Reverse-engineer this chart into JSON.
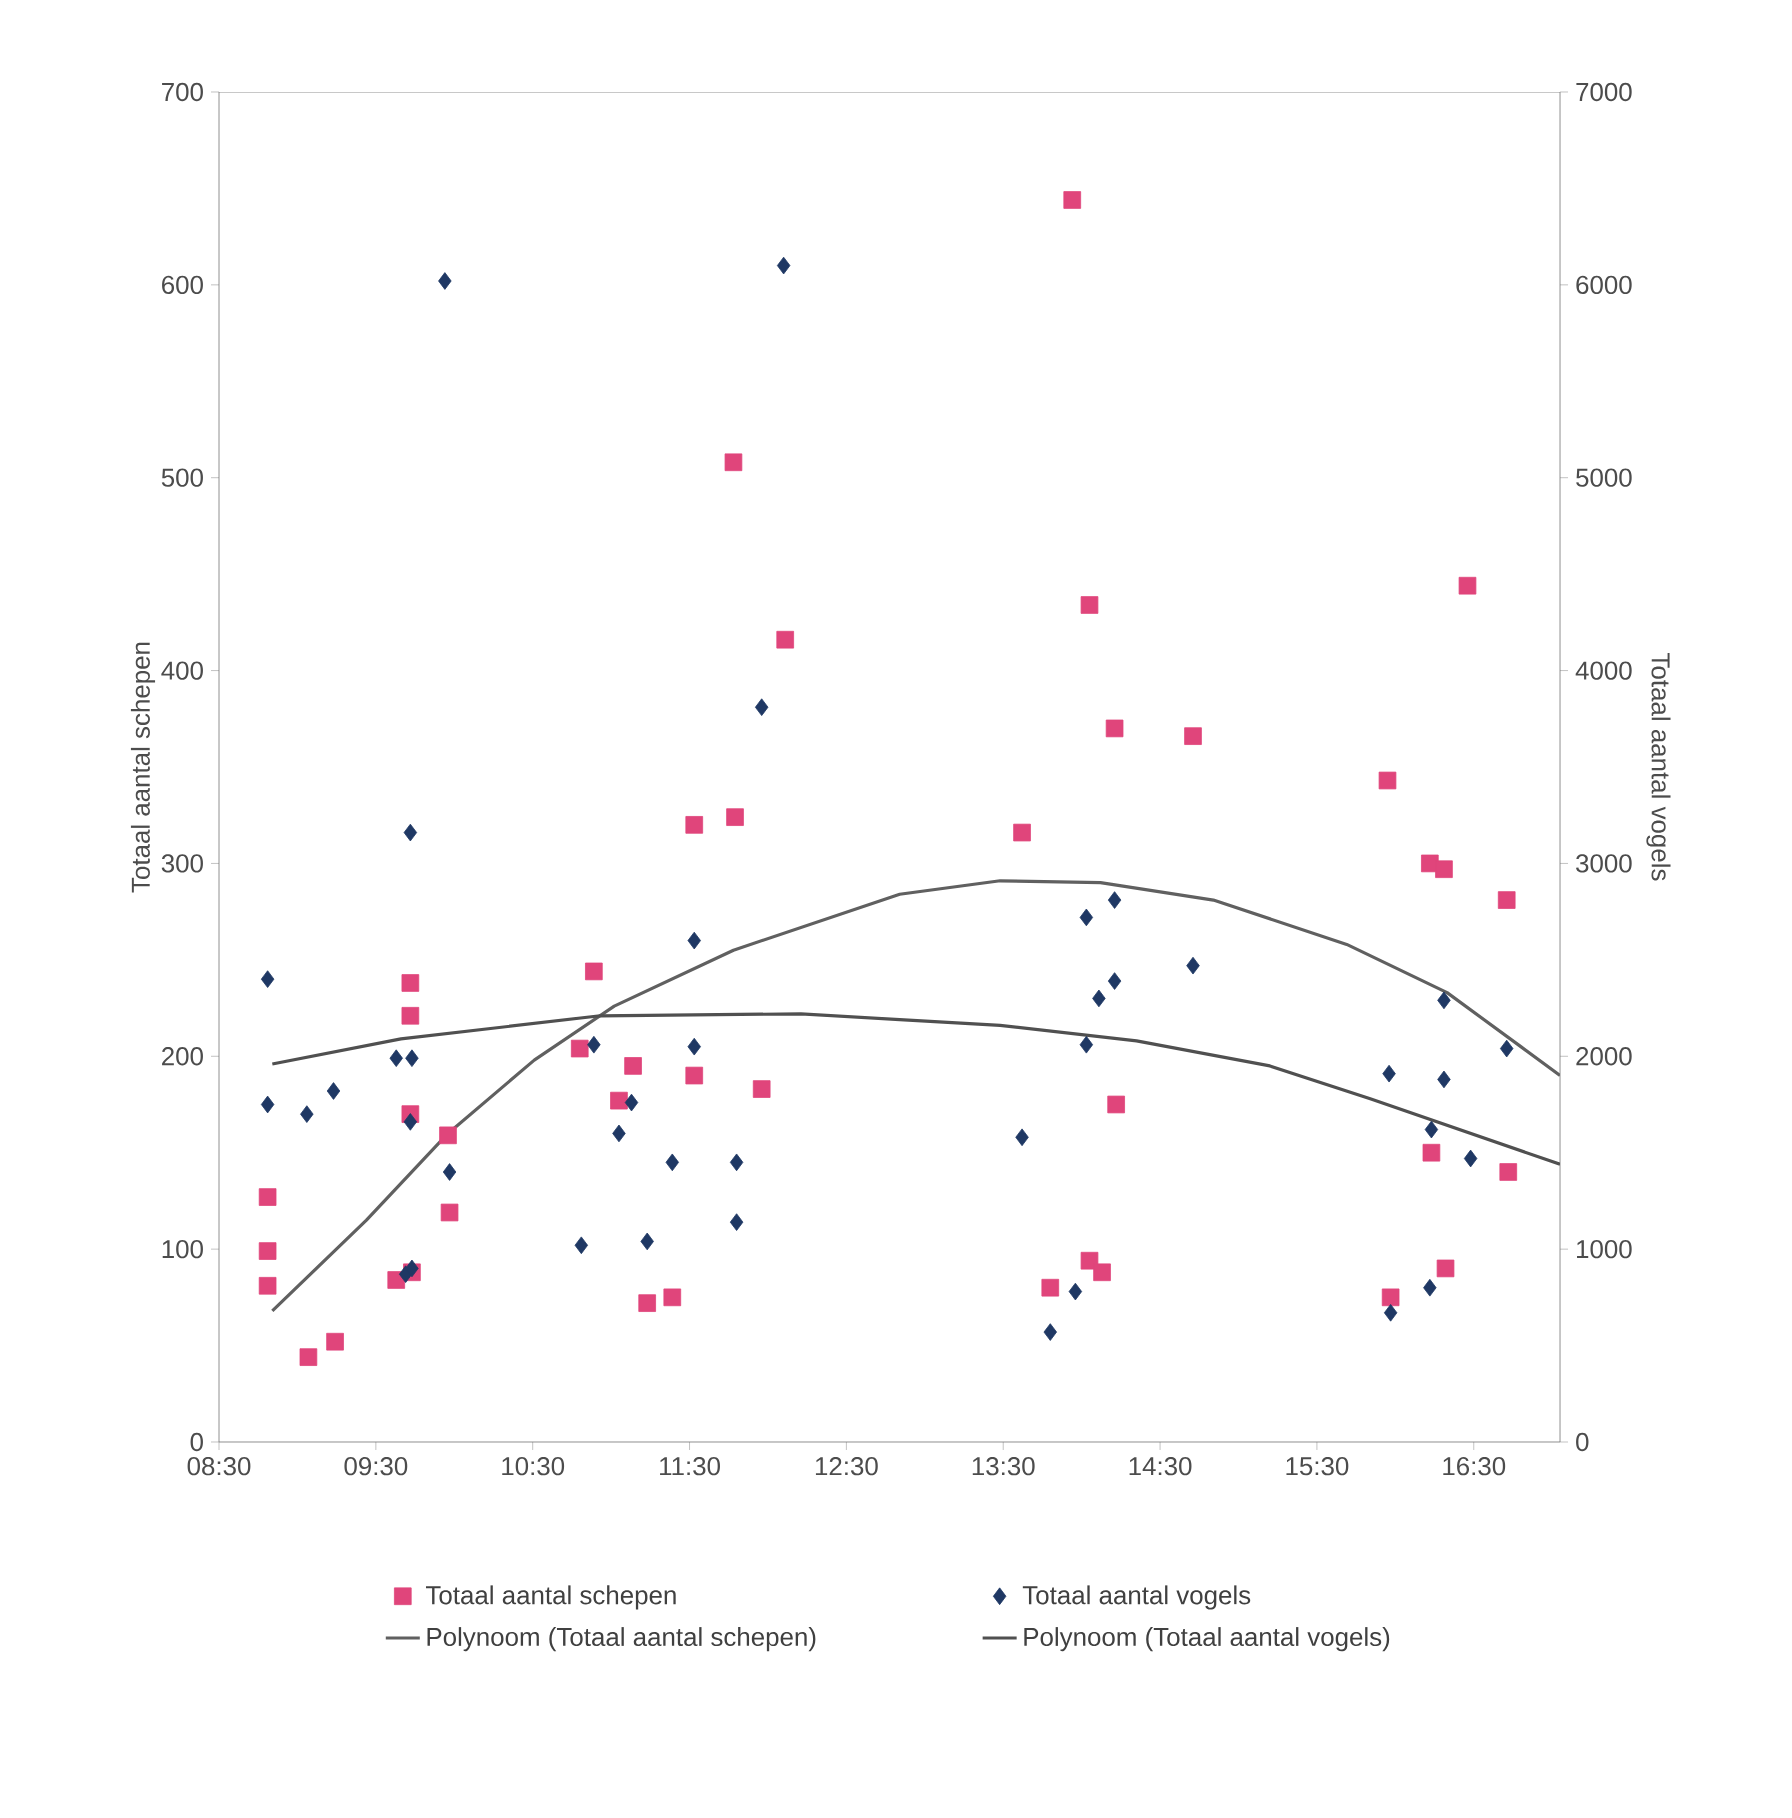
{
  "chart_data": {
    "type": "scatter",
    "ylabel": "Totaal aantal schepen",
    "y2label": "Totaal aantal vogels",
    "xlim": [
      8.5,
      17.05
    ],
    "xticks": [
      {
        "value": 8.5,
        "label": "08:30"
      },
      {
        "value": 9.5,
        "label": "09:30"
      },
      {
        "value": 10.5,
        "label": "10:30"
      },
      {
        "value": 11.5,
        "label": "11:30"
      },
      {
        "value": 12.5,
        "label": "12:30"
      },
      {
        "value": 13.5,
        "label": "13:30"
      },
      {
        "value": 14.5,
        "label": "14:30"
      },
      {
        "value": 15.5,
        "label": "15:30"
      },
      {
        "value": 16.5,
        "label": "16:30"
      }
    ],
    "ylim": [
      0,
      700
    ],
    "yticks": [
      0,
      100,
      200,
      300,
      400,
      500,
      600,
      700
    ],
    "y2lim": [
      0,
      7000
    ],
    "y2ticks": [
      0,
      1000,
      2000,
      3000,
      4000,
      5000,
      6000,
      7000
    ],
    "grid": false,
    "legend": "bottom",
    "series": [
      {
        "name": "Totaal aantal schepen",
        "marker": "square",
        "color": "#e0457b",
        "x": [
          8.81,
          8.81,
          8.81,
          9.07,
          9.24,
          9.63,
          9.73,
          9.72,
          9.72,
          9.72,
          9.96,
          9.97,
          10.8,
          10.89,
          11.05,
          11.14,
          11.23,
          11.39,
          11.53,
          11.53,
          11.79,
          11.78,
          11.96,
          12.11,
          13.62,
          13.8,
          13.94,
          14.05,
          14.05,
          14.13,
          14.21,
          14.22,
          14.71,
          15.95,
          15.97,
          16.22,
          16.23,
          16.31,
          16.32,
          16.46,
          16.71,
          16.72
        ],
        "values": [
          127,
          99,
          81,
          44,
          52,
          84,
          88,
          238,
          221,
          170,
          159,
          119,
          204,
          244,
          177,
          195,
          72,
          75,
          190,
          320,
          324,
          508,
          183,
          416,
          316,
          80,
          644,
          434,
          94,
          88,
          370,
          175,
          366,
          343,
          75,
          300,
          150,
          297,
          90,
          444,
          281,
          140
        ]
      },
      {
        "name": "Totaal aantal vogels",
        "marker": "diamond",
        "axis": "y2",
        "color": "#1f3864",
        "x": [
          8.81,
          8.81,
          9.06,
          9.23,
          9.69,
          9.73,
          9.72,
          9.63,
          9.73,
          9.72,
          9.94,
          9.97,
          10.81,
          10.89,
          11.05,
          11.13,
          11.23,
          11.39,
          11.53,
          11.53,
          11.8,
          11.8,
          11.96,
          12.1,
          13.62,
          13.8,
          13.96,
          14.03,
          14.03,
          14.11,
          14.21,
          14.21,
          14.71,
          15.96,
          15.97,
          16.23,
          16.22,
          16.31,
          16.31,
          16.48,
          16.71
        ],
        "values": [
          2400,
          1750,
          1700,
          1820,
          870,
          900,
          3160,
          1990,
          1990,
          1660,
          6020,
          1400,
          1020,
          2060,
          1600,
          1760,
          1040,
          1450,
          2600,
          2050,
          1450,
          1140,
          3810,
          6100,
          1580,
          570,
          780,
          2720,
          2060,
          2300,
          2810,
          2390,
          2470,
          1910,
          670,
          1620,
          800,
          2290,
          1880,
          1470,
          2040
        ]
      },
      {
        "name": "Polynoom (Totaal aantal schepen)",
        "type": "line",
        "marker": "none",
        "line_style": "solid",
        "color": "#606060",
        "x": [
          8.84,
          9.44,
          9.96,
          10.51,
          11.02,
          11.78,
          12.84,
          13.48,
          14.12,
          14.84,
          15.69,
          16.33,
          16.8,
          17.05
        ],
        "values": [
          68,
          115,
          160,
          198,
          226,
          255,
          284,
          291,
          290,
          281,
          258,
          233,
          205,
          190
        ]
      },
      {
        "name": "Polynoom (Totaal aantal vogels)",
        "type": "line",
        "marker": "none",
        "line_style": "solid",
        "axis": "y2",
        "color": "#505050",
        "x": [
          8.84,
          9.66,
          10.93,
          12.21,
          12.84,
          13.48,
          14.35,
          15.2,
          15.84,
          17.05
        ],
        "values": [
          1960,
          2090,
          2210,
          2220,
          2190,
          2160,
          2080,
          1950,
          1780,
          1440
        ]
      }
    ]
  }
}
